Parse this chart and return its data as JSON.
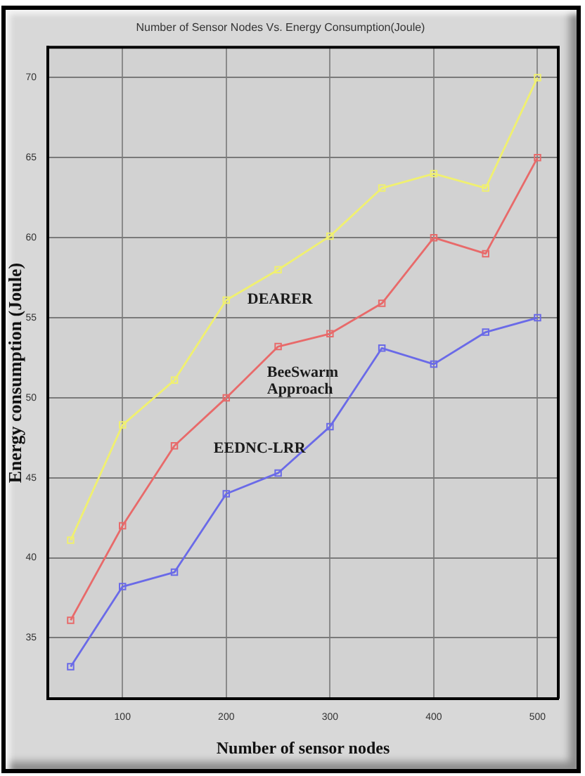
{
  "chart_data": {
    "type": "line",
    "title": "Number of Sensor Nodes Vs. Energy Consumption(Joule)",
    "xlabel": "Number of sensor nodes",
    "ylabel": "Energy consumption (Joule)",
    "x": [
      50,
      100,
      150,
      200,
      250,
      300,
      350,
      400,
      450,
      500
    ],
    "series": [
      {
        "name": "DEARER",
        "color": "#f0f070",
        "values": [
          41.1,
          48.3,
          51.1,
          56.1,
          58,
          60.1,
          63.1,
          64,
          63.1,
          70
        ]
      },
      {
        "name": "BeeSwarm Approach",
        "color": "#e86a6a",
        "values": [
          36.1,
          42,
          47,
          50,
          53.2,
          54,
          55.9,
          60,
          59,
          65
        ]
      },
      {
        "name": "EEDNC-LRR",
        "color": "#6a6ae8",
        "values": [
          33.2,
          38.2,
          39.1,
          44,
          45.3,
          48.2,
          53.1,
          52.1,
          54.1,
          55
        ]
      }
    ],
    "xlim": [
      28,
      520
    ],
    "ylim": [
      31.2,
      71.9
    ],
    "xticks": [
      100,
      200,
      300,
      400,
      500
    ],
    "yticks": [
      35,
      40,
      45,
      50,
      55,
      60,
      65,
      70
    ],
    "grid": true,
    "legend": false,
    "marker": "square",
    "line_style": "solid"
  }
}
